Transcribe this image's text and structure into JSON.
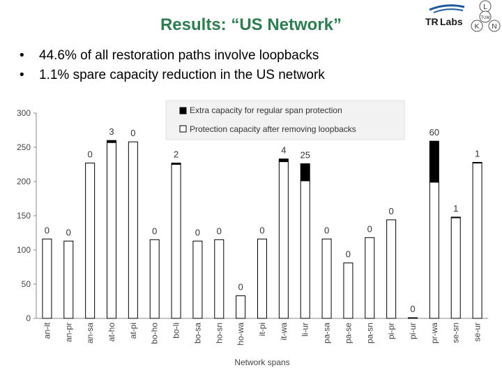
{
  "slide": {
    "title": "Results: “US Network”",
    "bullets": [
      "44.6% of all restoration paths involve loopbacks",
      "1.1% spare capacity reduction in the US network"
    ]
  },
  "logo": {
    "text_tr": "TR",
    "text_labs": "Labs",
    "circle_letters": [
      "L",
      "TUM",
      "K",
      "N"
    ]
  },
  "chart_data": {
    "type": "bar",
    "categories": [
      "an-it",
      "an-pr",
      "an-sa",
      "at-ho",
      "at-pi",
      "bo-ho",
      "bo-li",
      "bo-sa",
      "ho-sn",
      "ho-wa",
      "it-pi",
      "it-wa",
      "li-ur",
      "pa-sa",
      "pa-se",
      "pa-sn",
      "pi-pr",
      "pi-ur",
      "pr-wa",
      "se-sn",
      "se-ur"
    ],
    "series": [
      {
        "name": "Protection capacity after removing loopbacks",
        "color": "#ffffff",
        "values": [
          116,
          113,
          227,
          257,
          258,
          115,
          225,
          113,
          115,
          33,
          116,
          229,
          201,
          116,
          81,
          118,
          144,
          1,
          199,
          147,
          227
        ]
      },
      {
        "name": "Extra capacity for regular span protection",
        "color": "#000000",
        "values": [
          0,
          0,
          0,
          3,
          0,
          0,
          2,
          0,
          0,
          0,
          0,
          4,
          25,
          0,
          0,
          0,
          0,
          0,
          60,
          1,
          1
        ]
      }
    ],
    "bar_labels": [
      "0",
      "0",
      "0",
      "3",
      "0",
      "0",
      "2",
      "0",
      "0",
      "0",
      "0",
      "4",
      "25",
      "0",
      "0",
      "0",
      "0",
      "0",
      "60",
      "1",
      "1"
    ],
    "xlabel": "Network spans",
    "ylabel": "",
    "ylim": [
      0,
      300
    ],
    "yticks": [
      0,
      50,
      100,
      150,
      200,
      250,
      300
    ],
    "grid": false,
    "legend_position": "top-center"
  }
}
